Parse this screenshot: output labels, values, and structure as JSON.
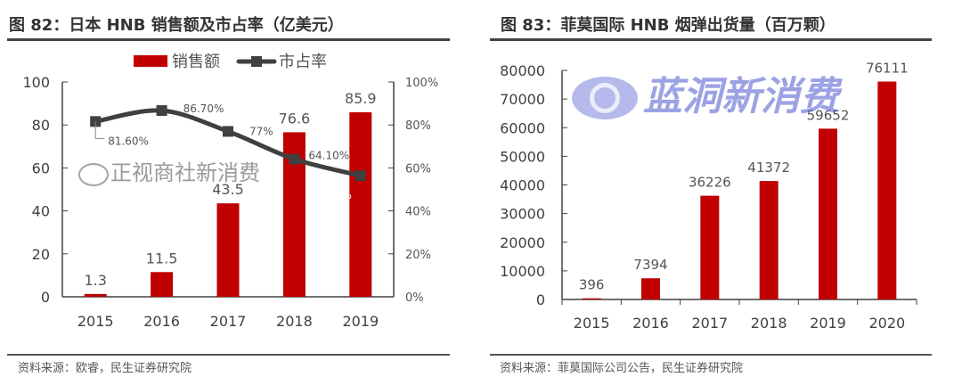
{
  "left": {
    "title": "图 82：日本 HNB 销售额及市占率（亿美元）",
    "source": "资料来源：欧睿，民生证券研究院"
  },
  "right": {
    "title": "图 83：菲莫国际 HNB 烟弹出货量（百万颗）",
    "source": "资料来源：菲莫国际公司公告，民生证券研究院"
  },
  "watermarks": {
    "brand": "蓝洞新消费",
    "wechat": "正视商社新消费"
  },
  "colors": {
    "bar": "#C00000",
    "line": "#404040",
    "axis": "#404040"
  },
  "chart_data": [
    {
      "type": "bar+line",
      "categories": [
        "2015",
        "2016",
        "2017",
        "2018",
        "2019"
      ],
      "series": [
        {
          "name": "销售额",
          "type": "bar",
          "axis": "left",
          "values": [
            1.3,
            11.5,
            43.5,
            76.6,
            85.9
          ],
          "labels": [
            "1.3",
            "11.5",
            "43.5",
            "76.6",
            "85.9"
          ]
        },
        {
          "name": "市占率",
          "type": "line",
          "axis": "right",
          "values": [
            81.6,
            86.7,
            77,
            64.1,
            56.4
          ],
          "labels": [
            "81.60%",
            "86.70%",
            "77%",
            "64.10%",
            "56.40%"
          ]
        }
      ],
      "ylim": [
        0,
        100
      ],
      "yticks": [
        "0",
        "20",
        "40",
        "60",
        "80",
        "100"
      ],
      "y2lim": [
        0,
        100
      ],
      "y2ticks": [
        "0%",
        "20%",
        "40%",
        "60%",
        "80%",
        "100%"
      ],
      "legend": "top",
      "grid": false
    },
    {
      "type": "bar",
      "categories": [
        "2015",
        "2016",
        "2017",
        "2018",
        "2019",
        "2020"
      ],
      "values": [
        396,
        7394,
        36226,
        41372,
        59652,
        76111
      ],
      "labels": [
        "396",
        "7394",
        "36226",
        "41372",
        "59652",
        "76111"
      ],
      "ylim": [
        0,
        80000
      ],
      "yticks": [
        "0",
        "10000",
        "20000",
        "30000",
        "40000",
        "50000",
        "60000",
        "70000",
        "80000"
      ],
      "grid": false
    }
  ]
}
